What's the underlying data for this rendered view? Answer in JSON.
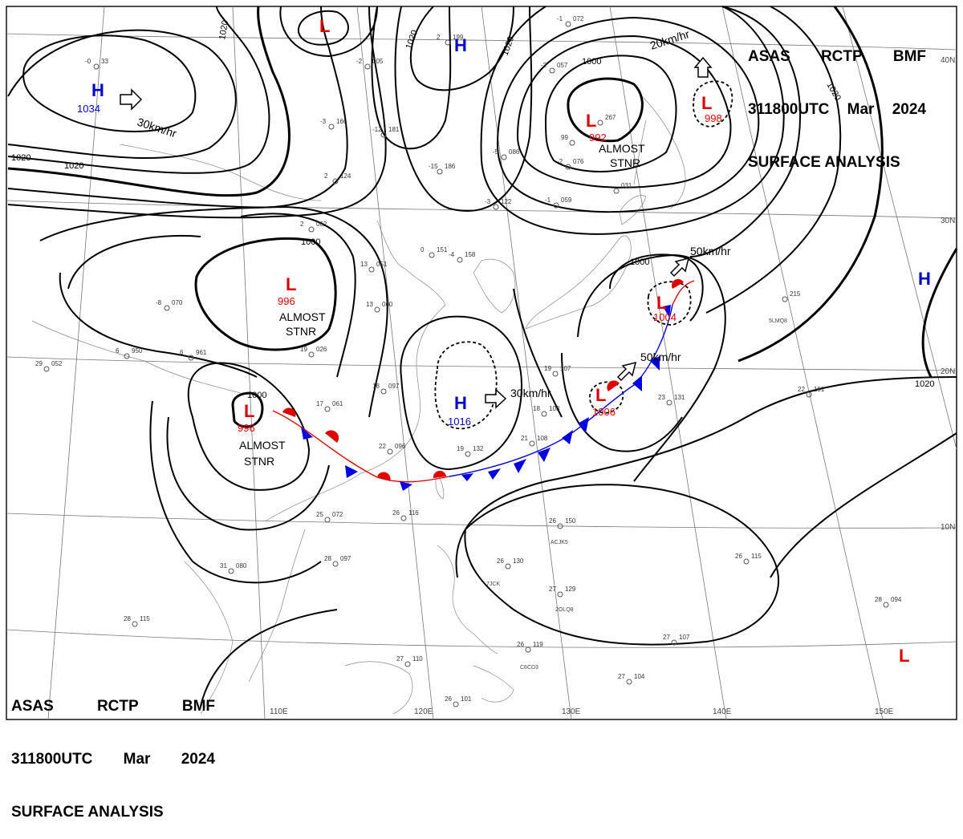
{
  "header": {
    "line1": [
      "ASAS",
      "RCTP",
      "BMF"
    ],
    "line2": [
      "311800UTC",
      "Mar",
      "2024"
    ],
    "line3": "SURFACE ANALYSIS"
  },
  "grid": {
    "lat_labels": [
      "40N",
      "30N",
      "20N",
      "10N"
    ],
    "lon_labels": [
      "110E",
      "120E",
      "130E",
      "140E",
      "150E"
    ]
  },
  "pressure_systems": [
    {
      "id": "h-north",
      "type": "H",
      "value": "1034"
    },
    {
      "id": "h-top",
      "type": "H",
      "value": ""
    },
    {
      "id": "h-east",
      "type": "H",
      "value": ""
    },
    {
      "id": "h-china",
      "type": "H",
      "value": "1016"
    },
    {
      "id": "l-top",
      "type": "L",
      "value": ""
    },
    {
      "id": "l-kamchatka",
      "type": "L",
      "value": "992"
    },
    {
      "id": "l-ne",
      "type": "L",
      "value": "998"
    },
    {
      "id": "l-mongolia",
      "type": "L",
      "value": "996"
    },
    {
      "id": "l-tibet",
      "type": "L",
      "value": "996"
    },
    {
      "id": "l-japan",
      "type": "L",
      "value": "1004"
    },
    {
      "id": "l-okinawa",
      "type": "L",
      "value": "1006"
    },
    {
      "id": "l-pacific",
      "type": "L",
      "value": ""
    }
  ],
  "isobar_labels": [
    "1020",
    "1020",
    "1020",
    "1020",
    "1000",
    "1000",
    "1000",
    "1020",
    "1020",
    "1000",
    "1020"
  ],
  "annotations": {
    "almost_stnr": [
      "ALMOST",
      "STNR"
    ],
    "movements": [
      "30km/hr",
      "20km/hr",
      "50km/hr",
      "50km/hr",
      "30km/hr"
    ]
  },
  "station_plots": [
    {
      "a": "-0",
      "b": "33"
    },
    {
      "a": "-2",
      "b": "005"
    },
    {
      "a": "-12",
      "b": "181"
    },
    {
      "a": "2",
      "b": "199"
    },
    {
      "a": "-3",
      "b": "166"
    },
    {
      "a": "2",
      "b": "124"
    },
    {
      "a": "-15",
      "b": "186"
    },
    {
      "a": "-5",
      "b": "086"
    },
    {
      "a": "-2",
      "b": "076"
    },
    {
      "a": "-4",
      "b": "158"
    },
    {
      "a": "0",
      "b": "151"
    },
    {
      "a": "13",
      "b": "051"
    },
    {
      "a": "13",
      "b": "060"
    },
    {
      "a": "17",
      "b": "061"
    },
    {
      "a": "18",
      "b": "097"
    },
    {
      "a": "22",
      "b": "096"
    },
    {
      "a": "19",
      "b": "132"
    },
    {
      "a": "21",
      "b": "108"
    },
    {
      "a": "18",
      "b": "103"
    },
    {
      "a": "19",
      "b": "107"
    },
    {
      "a": "26",
      "b": "116"
    },
    {
      "a": "25",
      "b": "072"
    },
    {
      "a": "28",
      "b": "097"
    },
    {
      "a": "31",
      "b": "080"
    },
    {
      "a": "26",
      "b": "130"
    },
    {
      "a": "27",
      "b": "129"
    },
    {
      "a": "26",
      "b": "150"
    },
    {
      "a": "26",
      "b": "119"
    },
    {
      "a": "27",
      "b": "110"
    },
    {
      "a": "26",
      "b": "101"
    },
    {
      "a": "27",
      "b": "107"
    },
    {
      "a": "27",
      "b": "104"
    },
    {
      "a": "28",
      "b": "094"
    },
    {
      "a": "26",
      "b": "115"
    },
    {
      "a": "23",
      "b": "131"
    },
    {
      "a": "22",
      "b": "191"
    },
    {
      "a": "",
      "b": "215"
    },
    {
      "a": "28",
      "b": "115"
    },
    {
      "a": "29",
      "b": "052"
    },
    {
      "a": "6",
      "b": "950"
    },
    {
      "a": "6",
      "b": "961"
    },
    {
      "a": "-8",
      "b": "070"
    },
    {
      "a": "19",
      "b": "026"
    },
    {
      "a": "2",
      "b": "062"
    },
    {
      "a": "-3",
      "b": "122"
    },
    {
      "a": "-1",
      "b": "059"
    },
    {
      "a": "",
      "b": "031"
    },
    {
      "a": "",
      "b": "267"
    },
    {
      "a": "99",
      "b": ""
    },
    {
      "a": "-2",
      "b": "057"
    },
    {
      "a": "-1",
      "b": "072"
    }
  ],
  "ship_ids": [
    "5LMQ8",
    "ACJK5",
    "7JCK",
    "2OLQ8",
    "C6CD3"
  ]
}
